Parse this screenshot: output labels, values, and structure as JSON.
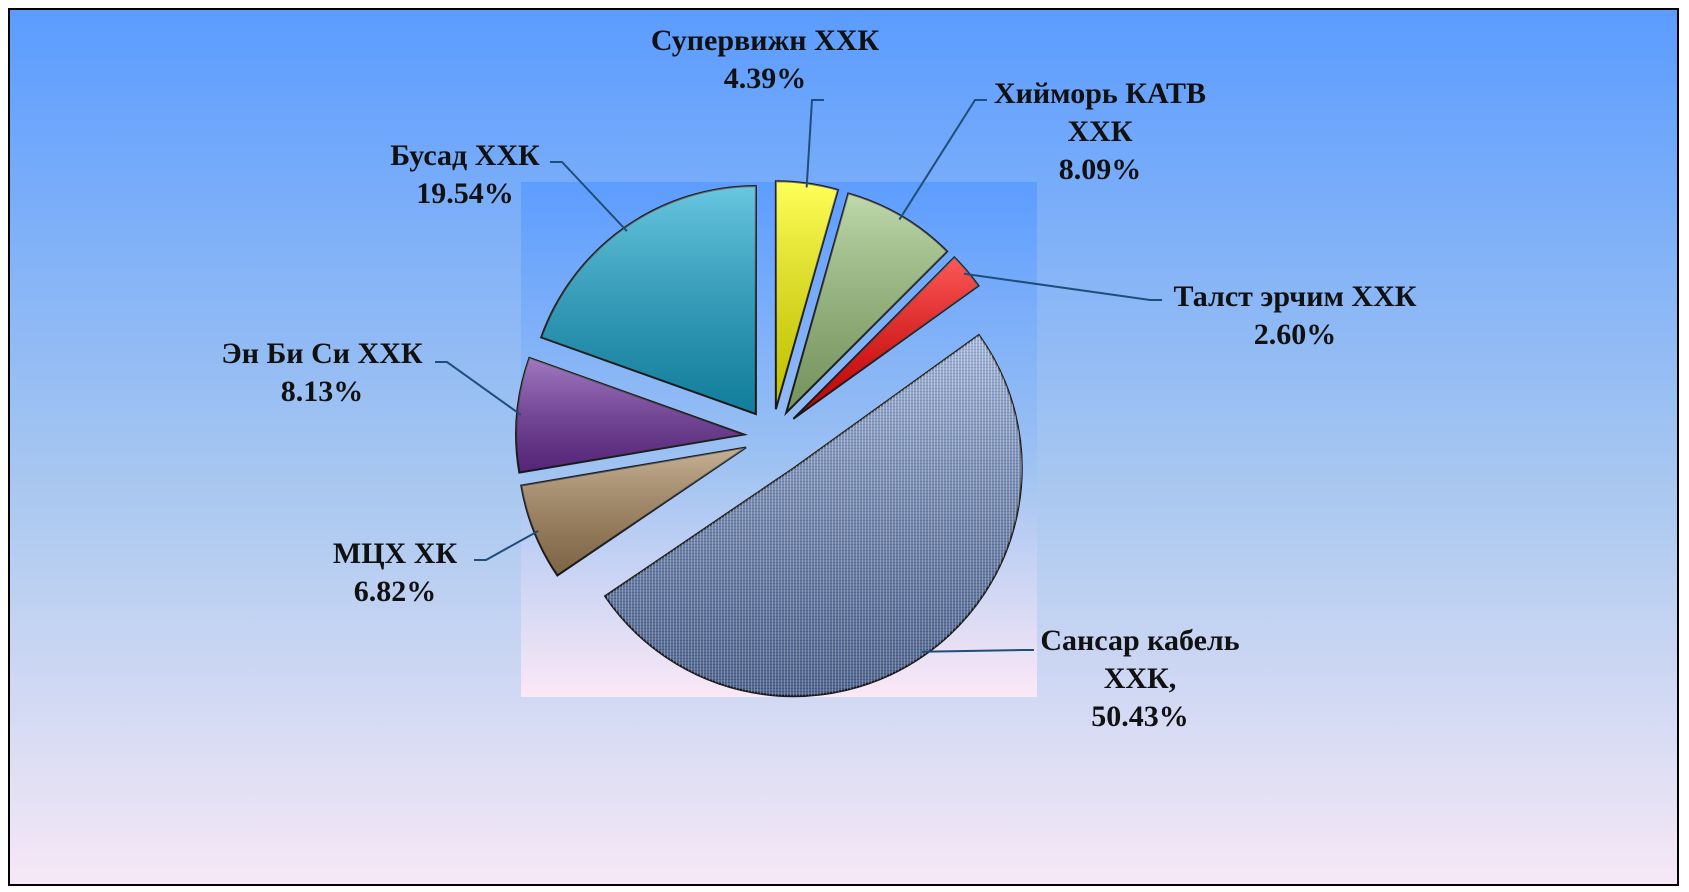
{
  "chart_data": {
    "type": "pie",
    "categories": [
      "Супервижн ХХК",
      "Хийморь КАТВ ХХК",
      "Талст эрчим ХХК",
      "Сансар кабель ХХК,",
      "МЦХ ХК",
      "Эн Би Си ХХК",
      "Бусад ХХК"
    ],
    "values": [
      4.39,
      8.09,
      2.6,
      50.43,
      6.82,
      8.13,
      19.54
    ],
    "value_labels": [
      "4.39%",
      "8.09%",
      "2.60%",
      "50.43%",
      "6.82%",
      "8.13%",
      "19.54%"
    ],
    "colors": [
      "#ffff00",
      "#9cc47c",
      "#ff0000",
      "#6f8cc4",
      "#a8865a",
      "#7030a0",
      "#17a8d0"
    ]
  }
}
